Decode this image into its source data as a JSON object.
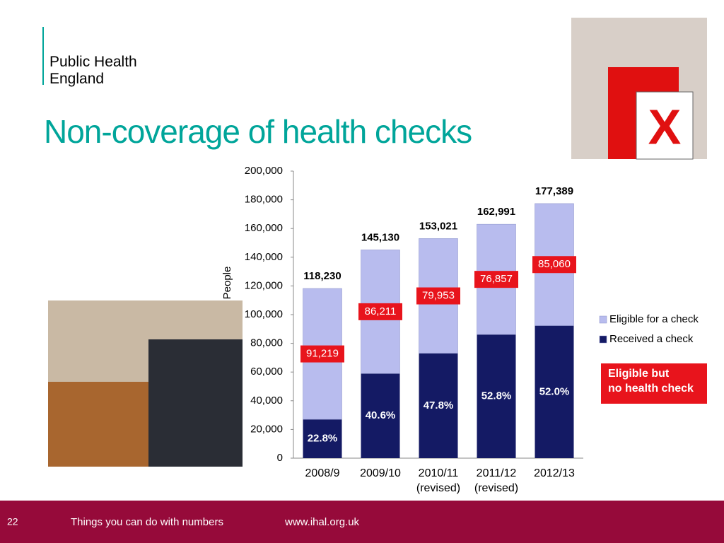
{
  "header": {
    "logo": "Public Health England"
  },
  "title": "Non-coverage of health checks",
  "chart_data": {
    "type": "stacked-bar",
    "y_label": "People",
    "categories": [
      "2008/9",
      "2009/10",
      "2010/11 (revised)",
      "2011/12 (revised)",
      "2012/13"
    ],
    "series": [
      {
        "name": "Received a check",
        "color": "#141a64",
        "values": [
          27011,
          58919,
          73068,
          86134,
          92329
        ],
        "percent_labels": [
          "22.8%",
          "40.6%",
          "47.8%",
          "52.8%",
          "52.0%"
        ]
      },
      {
        "name": "Eligible for a check",
        "color": "#b8bcee",
        "values": [
          91219,
          86211,
          79953,
          76857,
          85060
        ],
        "value_labels": [
          "91,219",
          "86,211",
          "79,953",
          "76,857",
          "85,060"
        ]
      }
    ],
    "total_labels": [
      "118,230",
      "145,130",
      "153,021",
      "162,991",
      "177,389"
    ],
    "ylim": [
      0,
      200000
    ],
    "yticks": [
      0,
      {
        "value": 20000,
        "label": "20,000"
      },
      {
        "value": 40000,
        "label": "40,000"
      },
      {
        "value": 60000,
        "label": "60,000"
      },
      {
        "value": 80000,
        "label": "80,000"
      },
      {
        "value": 100000,
        "label": "100,000"
      },
      {
        "value": 120000,
        "label": "120,000"
      },
      {
        "value": 140000,
        "label": "140,000"
      },
      {
        "value": 160000,
        "label": "160,000"
      },
      {
        "value": 180000,
        "label": "180,000"
      },
      {
        "value": 200000,
        "label": "200,000"
      }
    ],
    "annotation": [
      "Eligible but",
      "no health check"
    ]
  },
  "footer": {
    "page": "22",
    "text": "Things you can do with numbers",
    "url": "www.ihal.org.uk"
  }
}
